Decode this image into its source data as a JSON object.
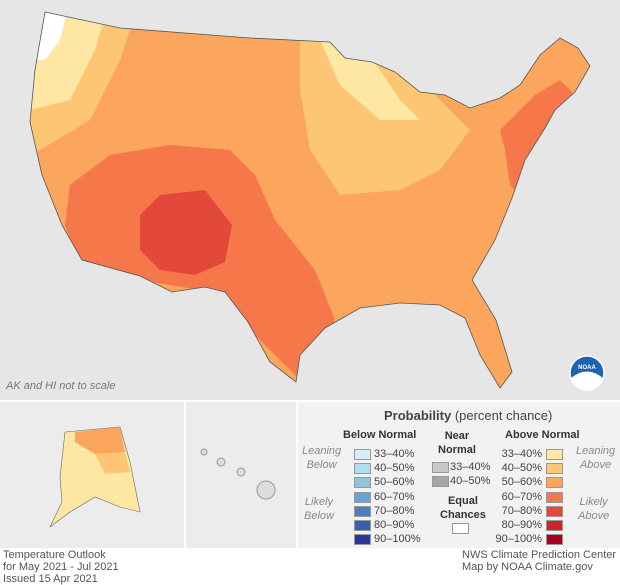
{
  "map": {
    "note": "AK and HI not to scale",
    "logo": "NOAA"
  },
  "legend": {
    "title_bold": "Probability",
    "title_rest": "(percent chance)",
    "below": {
      "heading": "Below Normal",
      "leaning": [
        "Leaning",
        "Below"
      ],
      "likely": [
        "Likely",
        "Below"
      ],
      "items": [
        {
          "label": "33–40%",
          "color": "#d6eef7"
        },
        {
          "label": "40–50%",
          "color": "#b3dcec"
        },
        {
          "label": "50–60%",
          "color": "#8ec4de"
        },
        {
          "label": "60–70%",
          "color": "#6ba3cf"
        },
        {
          "label": "70–80%",
          "color": "#4b7fc0"
        },
        {
          "label": "80–90%",
          "color": "#3a5fa8"
        },
        {
          "label": "90–100%",
          "color": "#2b3594"
        }
      ]
    },
    "near": {
      "heading": [
        "Near",
        "Normal"
      ],
      "items": [
        {
          "label": "33–40%",
          "color": "#c8c8c8"
        },
        {
          "label": "40–50%",
          "color": "#a6a6a6"
        }
      ]
    },
    "equal": {
      "heading": [
        "Equal",
        "Chances"
      ],
      "color": "#ffffff"
    },
    "above": {
      "heading": "Above Normal",
      "leaning": [
        "Leaning",
        "Above"
      ],
      "likely": [
        "Likely",
        "Above"
      ],
      "items": [
        {
          "label": "33–40%",
          "color": "#fee7a3"
        },
        {
          "label": "40–50%",
          "color": "#fdc675"
        },
        {
          "label": "50–60%",
          "color": "#fca55d"
        },
        {
          "label": "60–70%",
          "color": "#f6784a"
        },
        {
          "label": "70–80%",
          "color": "#e3493a"
        },
        {
          "label": "80–90%",
          "color": "#c9252b"
        },
        {
          "label": "90–100%",
          "color": "#a50026"
        }
      ]
    }
  },
  "footer": {
    "left": [
      "Temperature Outlook",
      "for May 2021 - Jul 2021",
      "Issued 15 Apr 2021"
    ],
    "right": [
      "NWS Climate Prediction Center",
      "Map by NOAA Climate.gov"
    ]
  }
}
